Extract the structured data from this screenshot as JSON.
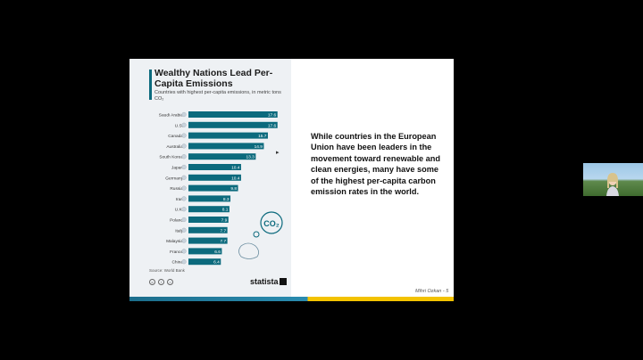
{
  "slide": {
    "caption": "While countries in the European Union have been leaders in the movement toward renewable and clean energies, many have some of the highest per-capita carbon emission rates in the world.",
    "footer": "Mihri Ozkan - 5"
  },
  "chart_data": {
    "type": "bar",
    "orientation": "horizontal",
    "title": "Wealthy Nations Lead Per-Capita Emissions",
    "subtitle": "Countries with highest per-capita emissions, in metric tons CO₂",
    "categories": [
      "Saudi Arabia",
      "U.S.",
      "Canada",
      "Australia",
      "South Korea",
      "Japan",
      "Germany",
      "Russia",
      "Iran",
      "U.K.",
      "Poland",
      "Italy",
      "Malaysia",
      "France",
      "China"
    ],
    "values": [
      17.6,
      17.6,
      15.7,
      14.9,
      13.3,
      10.4,
      10.4,
      9.8,
      8.3,
      8.1,
      7.9,
      7.7,
      7.7,
      6.6,
      6.4
    ],
    "value_labels": [
      "17.6",
      "17.6",
      "15.7",
      "14.9",
      "13.3",
      "10.4",
      "10.4",
      "9.8",
      "8.3",
      "8.1",
      "7.9",
      "7.7",
      "7.7",
      "6.6",
      "6.4"
    ],
    "xlim": [
      0,
      18
    ],
    "bar_color": "#0c6a7d",
    "source": "Source: World Bank",
    "brand": "statista",
    "co2_label": "CO₂"
  }
}
